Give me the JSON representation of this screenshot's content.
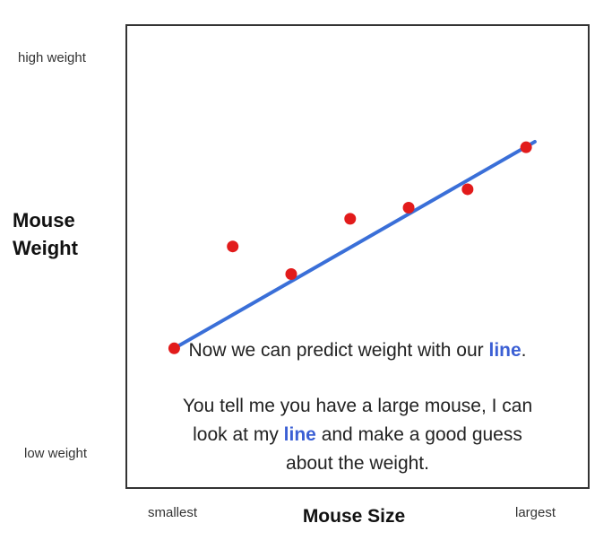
{
  "chart_data": {
    "type": "scatter",
    "ylabel_lines": [
      "Mouse",
      "Weight"
    ],
    "xlabel": "Mouse Size",
    "x_tick_labels": {
      "min": "smallest",
      "max": "largest"
    },
    "y_tick_labels": {
      "max": "high weight",
      "min": "low weight"
    },
    "xlim": [
      0,
      100
    ],
    "ylim": [
      0,
      100
    ],
    "grid": false,
    "points": [
      {
        "x": 10.2,
        "y": 30.1
      },
      {
        "x": 22.9,
        "y": 52.2
      },
      {
        "x": 35.6,
        "y": 46.2
      },
      {
        "x": 48.4,
        "y": 58.2
      },
      {
        "x": 61.1,
        "y": 60.6
      },
      {
        "x": 73.9,
        "y": 64.6
      },
      {
        "x": 86.6,
        "y": 73.7
      }
    ],
    "fit_line": {
      "x": [
        10.2,
        88.5
      ],
      "y": [
        30.1,
        74.9
      ]
    },
    "colors": {
      "points": "#e21b1b",
      "line": "#3a6fd8",
      "frame": "#333333"
    }
  },
  "caption": {
    "line1_pre": "Now we can predict weight with our ",
    "line1_highlight": "line",
    "line1_post": ".",
    "line2": "You tell me you have a large mouse, I can",
    "line3_pre": "look at my ",
    "line3_highlight": "line",
    "line3_post": " and make a good guess",
    "line4": "about the weight.",
    "highlight_color": "#3b5fd4"
  }
}
